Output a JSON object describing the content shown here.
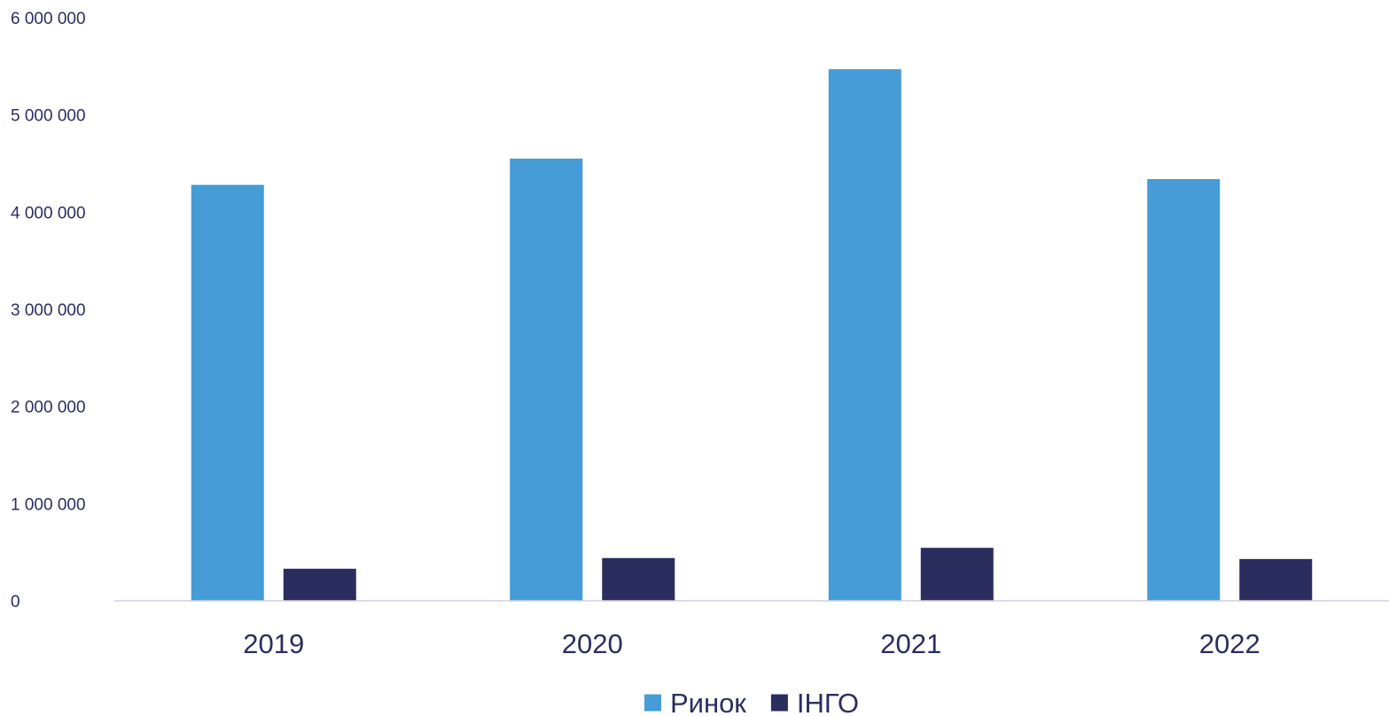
{
  "chart_data": {
    "type": "bar",
    "title": "",
    "xlabel": "",
    "ylabel": "",
    "categories": [
      "2019",
      "2020",
      "2021",
      "2022"
    ],
    "series": [
      {
        "name": "Ринок",
        "color": "#459cd6",
        "values": [
          4280000,
          4550000,
          5470000,
          4340000
        ]
      },
      {
        "name": "ІНГО",
        "color": "#2b2d5f",
        "values": [
          330000,
          440000,
          545000,
          430000
        ]
      }
    ],
    "ylim": [
      0,
      6000000
    ],
    "y_ticks": [
      {
        "value": 0,
        "label": "0"
      },
      {
        "value": 1000000,
        "label": "1 000 000"
      },
      {
        "value": 2000000,
        "label": "2 000 000"
      },
      {
        "value": 3000000,
        "label": "3 000 000"
      },
      {
        "value": 4000000,
        "label": "4 000 000"
      },
      {
        "value": 5000000,
        "label": "5 000 000"
      },
      {
        "value": 6000000,
        "label": "6 000 000"
      }
    ],
    "grid": false,
    "legend_position": "bottom-center",
    "axis_color": "#d0d0e4"
  }
}
